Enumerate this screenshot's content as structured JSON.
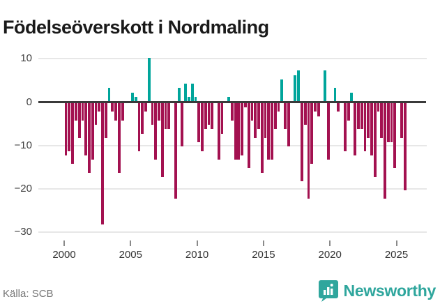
{
  "title": "Födelseöverskott i Nordmaling",
  "source": "Källa: SCB",
  "brand": {
    "name": "Newsworthy",
    "logo_icon": "bar-chart-pin-icon"
  },
  "colors": {
    "positive": "#00a59b",
    "negative": "#a31150",
    "axis": "#3a3a3a",
    "grid": "#e7e7e7",
    "tick": "#8a8a8a",
    "label": "#3f3f3f",
    "title": "#1a1a1a",
    "source_text": "#757575",
    "brand": "#2fa69d",
    "background": "#ffffff"
  },
  "chart_data": {
    "type": "bar",
    "title": "Födelseöverskott i Nordmaling",
    "x_unit": "quarter",
    "start": "2000-Q1",
    "end": "2025-Q3",
    "grid": true,
    "ylim": [
      -30,
      12
    ],
    "x_ticks": [
      "2000",
      "2005",
      "2010",
      "2015",
      "2020",
      "2025"
    ],
    "x_tick_years": [
      2000,
      2005,
      2010,
      2015,
      2020,
      2025
    ],
    "y_ticks": [
      "10",
      "0",
      "−10",
      "−20",
      "−30"
    ],
    "y_tick_values": [
      10,
      0,
      -10,
      -20,
      -30
    ],
    "values": [
      -12,
      -11,
      -14,
      -4,
      -8,
      -4,
      -12,
      -16,
      -13,
      -5,
      -2,
      -28,
      -8,
      3,
      -2,
      -4,
      -16,
      -4,
      0,
      0,
      2,
      1,
      -11,
      -7,
      -2,
      10,
      -5,
      -13,
      -4,
      -17,
      -6,
      -6,
      0,
      -22,
      3,
      -10,
      4,
      1,
      4,
      1,
      -9,
      -11,
      -6,
      -5,
      -6,
      0,
      -13,
      -7,
      0,
      1,
      -4,
      -13,
      -13,
      -12,
      -1,
      -15,
      -4,
      -8,
      -6,
      -16,
      -8,
      -13,
      -13,
      -6,
      -2,
      5,
      -6,
      -10,
      0,
      6,
      7,
      -18,
      -5,
      -22,
      -14,
      -2,
      -3,
      0,
      7,
      -13,
      0,
      3,
      -2,
      0,
      -11,
      -4,
      2,
      -12,
      -6,
      -6,
      -11,
      -8,
      -12,
      -17,
      -2,
      -8,
      -22,
      -9,
      -9,
      -15,
      0,
      -8,
      -20
    ]
  }
}
